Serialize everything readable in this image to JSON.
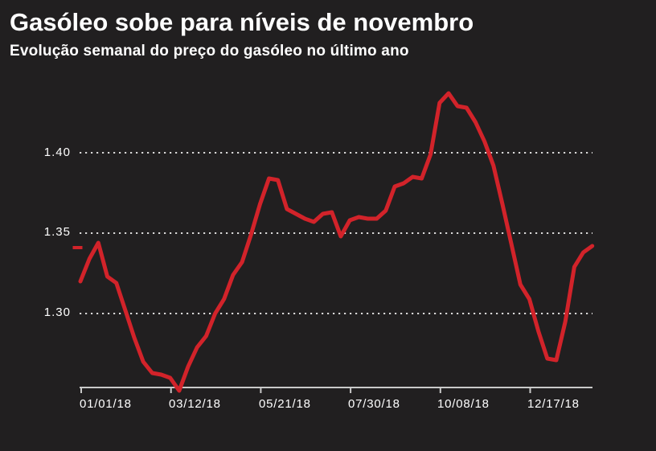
{
  "header": {
    "title": "Gasóleo sobe para níveis de novembro",
    "subtitle": "Evolução semanal do preço do gasóleo no último ano"
  },
  "colors": {
    "background": "#211f20",
    "line": "#d2232a",
    "text": "#ffffff",
    "axis": "#c9c9c9",
    "gridline": "#ededed"
  },
  "chart_data": {
    "type": "line",
    "title": "Gasóleo sobe para níveis de novembro",
    "subtitle": "Evolução semanal do preço do gasóleo no último ano",
    "grid": "horizontal-dotted",
    "legend": "none",
    "ylim": [
      1.245,
      1.445
    ],
    "y_tick_labels": [
      "1.40",
      "1.35",
      "1.30"
    ],
    "y_tick_values": [
      1.4,
      1.35,
      1.3
    ],
    "x_tick_labels": [
      "01/01/18",
      "03/12/18",
      "05/21/18",
      "07/30/18",
      "10/08/18",
      "12/17/18"
    ],
    "x_tick_point_indices": [
      0,
      10,
      20,
      30,
      40,
      50
    ],
    "current_value_marker": {
      "value": 1.342
    },
    "series": [
      {
        "name": "preço do gasóleo",
        "x": [
          "01/01/18",
          "01/08/18",
          "01/15/18",
          "01/22/18",
          "01/29/18",
          "02/05/18",
          "02/12/18",
          "02/19/18",
          "02/26/18",
          "03/05/18",
          "03/12/18",
          "03/19/18",
          "03/26/18",
          "04/02/18",
          "04/09/18",
          "04/16/18",
          "04/23/18",
          "04/30/18",
          "05/07/18",
          "05/14/18",
          "05/21/18",
          "05/28/18",
          "06/04/18",
          "06/11/18",
          "06/18/18",
          "06/25/18",
          "07/02/18",
          "07/09/18",
          "07/16/18",
          "07/23/18",
          "07/30/18",
          "08/06/18",
          "08/13/18",
          "08/20/18",
          "08/27/18",
          "09/03/18",
          "09/10/18",
          "09/17/18",
          "09/24/18",
          "10/01/18",
          "10/08/18",
          "10/15/18",
          "10/22/18",
          "10/29/18",
          "11/05/18",
          "11/12/18",
          "11/19/18",
          "11/26/18",
          "12/03/18",
          "12/10/18",
          "12/17/18",
          "12/24/18",
          "12/31/18",
          "01/07/19",
          "01/14/19",
          "01/21/19",
          "01/28/19",
          "02/04/19"
        ],
        "values": [
          1.32,
          1.334,
          1.344,
          1.323,
          1.319,
          1.302,
          1.285,
          1.27,
          1.263,
          1.262,
          1.26,
          1.252,
          1.267,
          1.279,
          1.286,
          1.3,
          1.309,
          1.324,
          1.332,
          1.349,
          1.368,
          1.384,
          1.383,
          1.365,
          1.362,
          1.359,
          1.357,
          1.362,
          1.363,
          1.348,
          1.358,
          1.36,
          1.359,
          1.359,
          1.364,
          1.379,
          1.381,
          1.385,
          1.384,
          1.399,
          1.431,
          1.437,
          1.429,
          1.428,
          1.419,
          1.407,
          1.392,
          1.368,
          1.343,
          1.318,
          1.309,
          1.289,
          1.272,
          1.271,
          1.295,
          1.329,
          1.338,
          1.342
        ]
      }
    ]
  }
}
